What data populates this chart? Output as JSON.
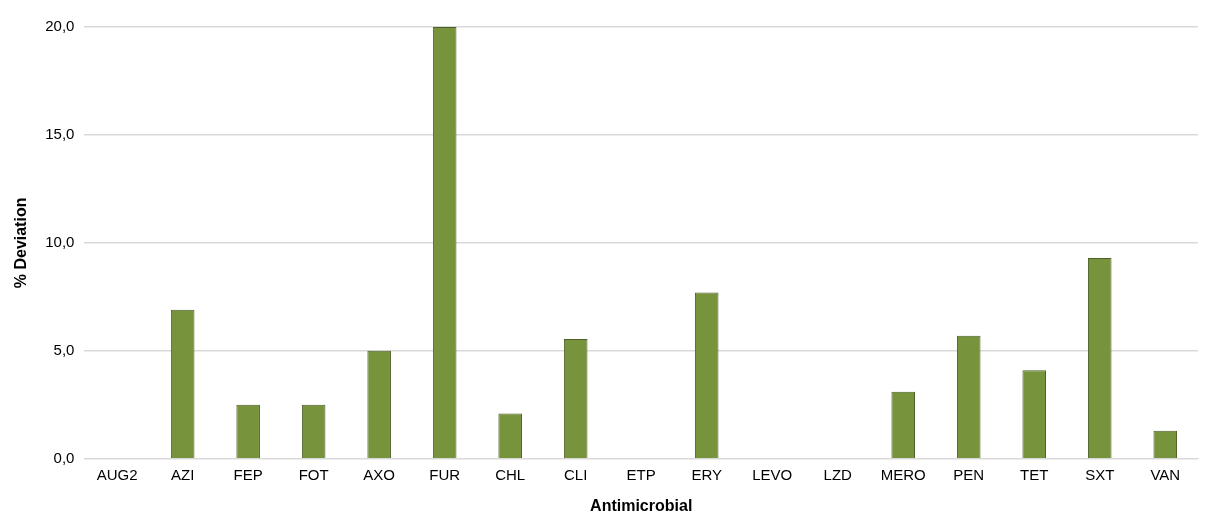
{
  "chart_data": {
    "type": "bar",
    "xlabel": "Antimicrobial",
    "ylabel": "% Deviation",
    "categories": [
      "AUG2",
      "AZI",
      "FEP",
      "FOT",
      "AXO",
      "FUR",
      "CHL",
      "CLI",
      "ETP",
      "ERY",
      "LEVO",
      "LZD",
      "MERO",
      "PEN",
      "TET",
      "SXT",
      "VAN"
    ],
    "series": [
      {
        "color": "#77933c",
        "values": [
          0,
          6.9,
          2.5,
          2.5,
          5.0,
          20.0,
          2.1,
          5.55,
          0,
          7.7,
          0,
          0,
          3.1,
          5.7,
          4.1,
          9.3,
          1.3
        ]
      }
    ],
    "ylim": [
      0,
      20
    ],
    "yticks": [
      {
        "value": 0,
        "label": "0,0"
      },
      {
        "value": 5,
        "label": "5,0"
      },
      {
        "value": 10,
        "label": "10,0"
      },
      {
        "value": 15,
        "label": "15,0"
      },
      {
        "value": 20,
        "label": "20,0"
      }
    ],
    "grid": "y",
    "legend": false
  }
}
